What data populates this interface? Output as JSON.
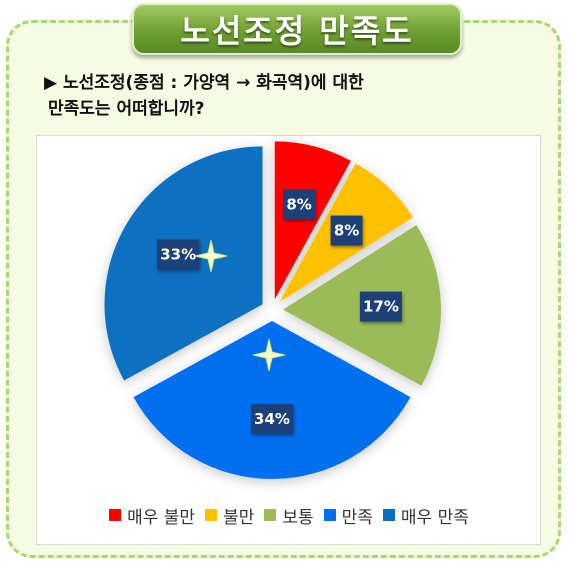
{
  "header": {
    "title": "노선조정 만족도"
  },
  "question": {
    "line1": "▶ 노선조정(종점 : 가양역 → 화곡역)에 대한",
    "line2": "만족도는 어떠합니까?"
  },
  "chart_data": {
    "type": "pie",
    "title": "",
    "categories": [
      "매우 불만",
      "불만",
      "보통",
      "만족",
      "매우 만족"
    ],
    "values": [
      8,
      8,
      17,
      34,
      33
    ],
    "labels": [
      "8%",
      "8%",
      "17%",
      "34%",
      "33%"
    ],
    "colors": [
      "#ff0000",
      "#ffc000",
      "#9bbb59",
      "#0070f0",
      "#0870c0"
    ],
    "legend_position": "bottom",
    "label_box_color": "#1f3f77"
  }
}
